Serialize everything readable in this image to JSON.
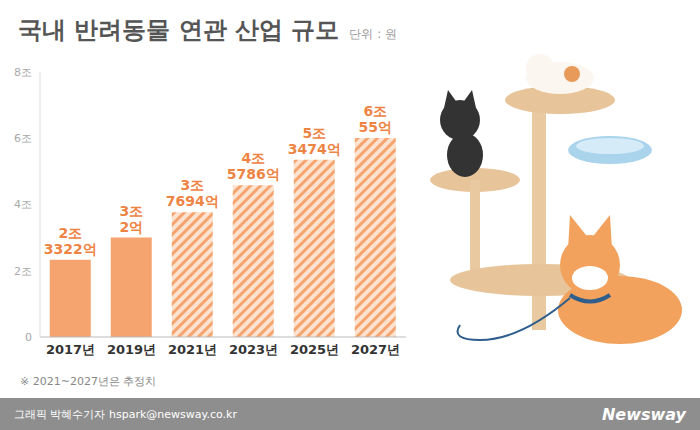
{
  "chart_data": {
    "type": "bar",
    "title": "국내 반려동물 연관 산업 규모",
    "subtitle": "단위 : 원",
    "categories": [
      "2017년",
      "2019년",
      "2021년",
      "2023년",
      "2025년",
      "2027년"
    ],
    "values": [
      2.3322,
      3.0002,
      3.7694,
      4.5786,
      5.3474,
      6.0055
    ],
    "value_labels": [
      "2조 3322억",
      "3조 2억",
      "3조 7694억",
      "4조 5786억",
      "5조 3474억",
      "6조 55억"
    ],
    "estimated": [
      false,
      false,
      true,
      true,
      true,
      true
    ],
    "color": "#f5a46f",
    "ylim": [
      0,
      8
    ],
    "yticks": [
      0,
      {
        "value": 2,
        "label": "2조"
      },
      {
        "value": 4,
        "label": "4조"
      },
      {
        "value": 6,
        "label": "6조"
      },
      {
        "value": 8,
        "label": "8조"
      }
    ],
    "grid": false,
    "data_labels": true,
    "note": "※ 2021~2027년은 추정치"
  },
  "footer": {
    "credit": "그래픽 박혜수기자 hspark@newsway.co.kr",
    "logo": "Newsway"
  }
}
